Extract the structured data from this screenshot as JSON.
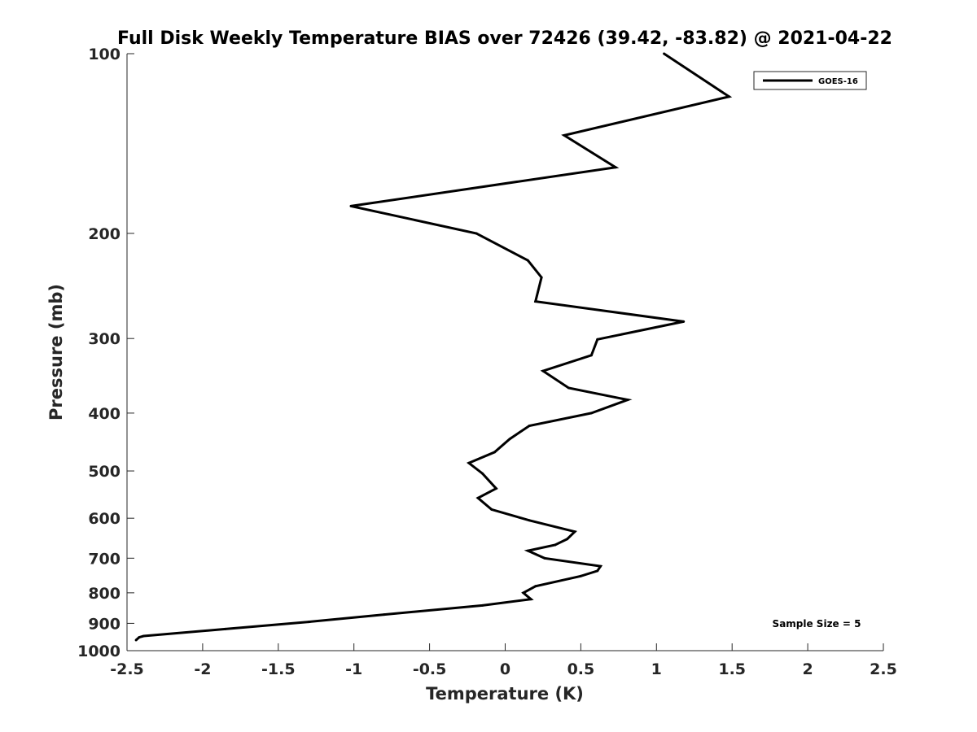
{
  "chart_data": {
    "type": "line",
    "title": "Full Disk Weekly Temperature BIAS over 72426 (39.42, -83.82) @ 2021-04-22",
    "xlabel": "Temperature (K)",
    "ylabel": "Pressure (mb)",
    "xlim": [
      -2.5,
      2.5
    ],
    "ylim": [
      100,
      1000
    ],
    "y_scale": "log",
    "y_reversed": true,
    "x_ticks": [
      "-2.5",
      "-2",
      "-1.5",
      "-1",
      "-0.5",
      "0",
      "0.5",
      "1",
      "1.5",
      "2",
      "2.5"
    ],
    "y_ticks": [
      "100",
      "200",
      "300",
      "400",
      "500",
      "600",
      "700",
      "800",
      "900",
      "1000"
    ],
    "grid": false,
    "legend_position": "top-right",
    "series": [
      {
        "name": "GOES-16",
        "color": "#000000",
        "points": [
          {
            "x": 1.05,
            "p": 100
          },
          {
            "x": 1.48,
            "p": 118
          },
          {
            "x": 0.39,
            "p": 137
          },
          {
            "x": 0.73,
            "p": 155
          },
          {
            "x": -1.02,
            "p": 180
          },
          {
            "x": -0.19,
            "p": 200
          },
          {
            "x": 0.15,
            "p": 222
          },
          {
            "x": 0.24,
            "p": 237
          },
          {
            "x": 0.2,
            "p": 260
          },
          {
            "x": 1.18,
            "p": 281
          },
          {
            "x": 0.61,
            "p": 301
          },
          {
            "x": 0.57,
            "p": 320
          },
          {
            "x": 0.25,
            "p": 340
          },
          {
            "x": 0.42,
            "p": 363
          },
          {
            "x": 0.81,
            "p": 380
          },
          {
            "x": 0.57,
            "p": 400
          },
          {
            "x": 0.16,
            "p": 420
          },
          {
            "x": 0.03,
            "p": 442
          },
          {
            "x": -0.07,
            "p": 465
          },
          {
            "x": -0.24,
            "p": 485
          },
          {
            "x": -0.15,
            "p": 505
          },
          {
            "x": -0.06,
            "p": 535
          },
          {
            "x": -0.18,
            "p": 555
          },
          {
            "x": -0.09,
            "p": 580
          },
          {
            "x": 0.16,
            "p": 605
          },
          {
            "x": 0.46,
            "p": 632
          },
          {
            "x": 0.41,
            "p": 650
          },
          {
            "x": 0.33,
            "p": 665
          },
          {
            "x": 0.15,
            "p": 680
          },
          {
            "x": 0.26,
            "p": 700
          },
          {
            "x": 0.63,
            "p": 722
          },
          {
            "x": 0.61,
            "p": 735
          },
          {
            "x": 0.5,
            "p": 750
          },
          {
            "x": 0.2,
            "p": 780
          },
          {
            "x": 0.12,
            "p": 800
          },
          {
            "x": 0.17,
            "p": 820
          },
          {
            "x": -0.15,
            "p": 840
          },
          {
            "x": -0.8,
            "p": 870
          },
          {
            "x": -1.3,
            "p": 895
          },
          {
            "x": -1.85,
            "p": 920
          },
          {
            "x": -2.39,
            "p": 945
          },
          {
            "x": -2.42,
            "p": 950
          },
          {
            "x": -2.44,
            "p": 960
          }
        ]
      }
    ],
    "annotations": [
      {
        "text": "Sample Size = 5"
      }
    ]
  }
}
